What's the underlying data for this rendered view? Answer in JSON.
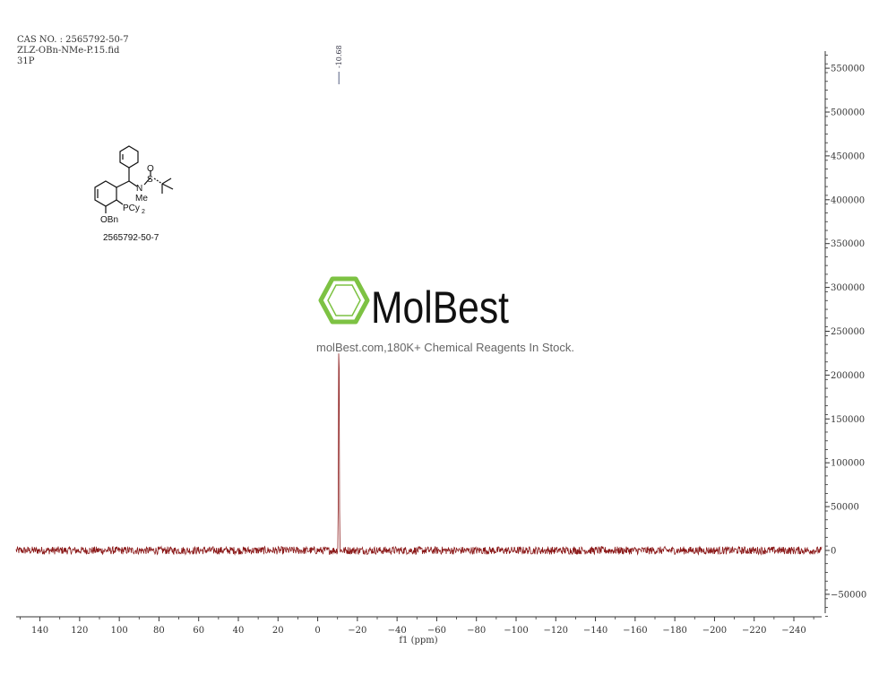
{
  "header": {
    "line1": "CAS NO. : 2565792-50-7",
    "line2": "ZLZ-OBn-NMe-P.15.fid",
    "line3": "31P"
  },
  "molecule": {
    "cas_label": "2565792-50-7",
    "atoms": {
      "o": "O",
      "s": "S",
      "n": "N",
      "me": "Me",
      "pcy": "PCy",
      "sub2": "2",
      "obn": "OBn"
    }
  },
  "watermark": {
    "brand": "MolBest",
    "tagline": "molBest.com,180K+ Chemical Reagents In Stock.",
    "color": "#7dc243"
  },
  "colors": {
    "spectrum": "#8b1a1a",
    "axis": "#333333",
    "peak_label": "#556080"
  },
  "chart_data": {
    "type": "line",
    "nucleus": "31P",
    "xlabel": "f1 (ppm)",
    "ylabel": "",
    "xlim": [
      152,
      -254
    ],
    "ylim": [
      -75000,
      565000
    ],
    "x_ticks": [
      140,
      120,
      100,
      80,
      60,
      40,
      20,
      0,
      -20,
      -40,
      -60,
      -80,
      -100,
      -120,
      -140,
      -160,
      -180,
      -200,
      -220,
      -240
    ],
    "x_tick_labels": [
      "140",
      "120",
      "100",
      "80",
      "60",
      "40",
      "20",
      "0",
      "−20",
      "−40",
      "−60",
      "−80",
      "−100",
      "−120",
      "−140",
      "−160",
      "−180",
      "−200",
      "−220",
      "−240"
    ],
    "y_ticks": [
      550000,
      500000,
      450000,
      400000,
      350000,
      300000,
      250000,
      200000,
      150000,
      100000,
      50000,
      0,
      -50000
    ],
    "y_tick_labels": [
      "550000",
      "500000",
      "450000",
      "400000",
      "350000",
      "300000",
      "250000",
      "200000",
      "150000",
      "100000",
      "50000",
      "0",
      "−50000"
    ],
    "peaks": [
      {
        "ppm": -10.68,
        "label": "-10.68",
        "intensity": 258000
      }
    ],
    "noise_amplitude": 4500,
    "grid": false
  }
}
